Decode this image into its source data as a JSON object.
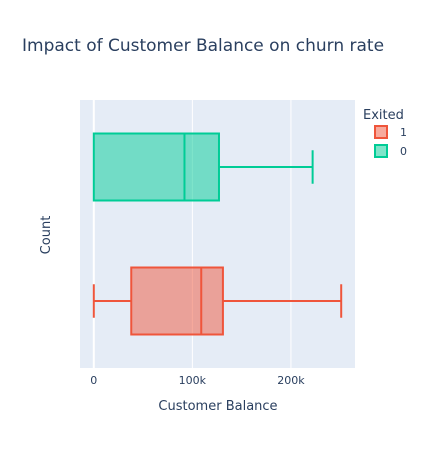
{
  "chart_data": {
    "type": "box",
    "orientation": "horizontal",
    "title": "Impact of Customer Balance on churn rate",
    "xlabel": "Customer Balance",
    "ylabel": "Count",
    "xlim": [
      -14000,
      265000
    ],
    "x_ticks": [
      {
        "value": 0,
        "label": "0"
      },
      {
        "value": 100000,
        "label": "100k"
      },
      {
        "value": 200000,
        "label": "200k"
      }
    ],
    "grid": true,
    "legend_title": "Exited",
    "legend_position": "top-right",
    "series": [
      {
        "name": "0",
        "color": "#00cc96",
        "fill": "#00cc96",
        "min": 0,
        "q1": 0,
        "median": 92000,
        "q3": 127000,
        "max": 222000
      },
      {
        "name": "1",
        "color": "#ef553b",
        "fill": "#ef553b",
        "min": 0,
        "q1": 38000,
        "median": 109000,
        "q3": 131000,
        "max": 251000
      }
    ],
    "legend": [
      {
        "name": "1",
        "color": "#ef553b"
      },
      {
        "name": "0",
        "color": "#00cc96"
      }
    ],
    "background": "#e5ecf6"
  }
}
